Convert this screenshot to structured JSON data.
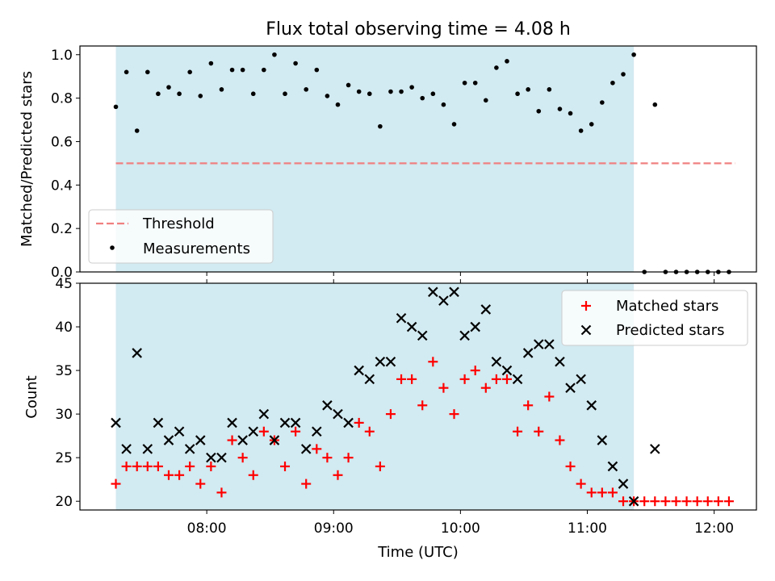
{
  "title": "Flux total observing time = 4.08 h",
  "colors": {
    "observing_band": "#add8e6",
    "threshold": "#f08080",
    "measurement": "#000000",
    "matched": "#ff0000",
    "predicted": "#000000"
  },
  "chart_data": [
    {
      "type": "scatter",
      "ylabel": "Matched/Predicted stars",
      "ylim": [
        0,
        1.04
      ],
      "yticks": [
        0.0,
        0.2,
        0.4,
        0.6,
        0.8,
        1.0
      ],
      "ytick_labels": [
        "0.0",
        "0.2",
        "0.4",
        "0.6",
        "0.8",
        "1.0"
      ],
      "observing_window": [
        "07:17",
        "11:22"
      ],
      "legend_position": "lower-left",
      "threshold": {
        "name": "Threshold",
        "style": "dashed",
        "value": 0.5,
        "x_range": [
          "07:17",
          "12:10"
        ]
      },
      "series": [
        {
          "name": "Measurements",
          "marker": "dot",
          "x": [
            "07:17",
            "07:22",
            "07:27",
            "07:32",
            "07:37",
            "07:42",
            "07:47",
            "07:52",
            "07:57",
            "08:02",
            "08:07",
            "08:12",
            "08:17",
            "08:22",
            "08:27",
            "08:32",
            "08:37",
            "08:42",
            "08:47",
            "08:52",
            "08:57",
            "09:02",
            "09:07",
            "09:12",
            "09:17",
            "09:22",
            "09:27",
            "09:32",
            "09:37",
            "09:42",
            "09:47",
            "09:52",
            "09:57",
            "10:02",
            "10:07",
            "10:12",
            "10:17",
            "10:22",
            "10:27",
            "10:32",
            "10:37",
            "10:42",
            "10:47",
            "10:52",
            "10:57",
            "11:02",
            "11:07",
            "11:12",
            "11:17",
            "11:22",
            "11:27",
            "11:32",
            "11:37",
            "11:42",
            "11:47",
            "11:52",
            "11:57",
            "12:02",
            "12:07"
          ],
          "y": [
            0.76,
            0.92,
            0.65,
            0.92,
            0.82,
            0.85,
            0.82,
            0.92,
            0.81,
            0.96,
            0.84,
            0.93,
            0.93,
            0.82,
            0.93,
            1.0,
            0.82,
            0.96,
            0.84,
            0.93,
            0.81,
            0.77,
            0.86,
            0.83,
            0.82,
            0.67,
            0.83,
            0.83,
            0.85,
            0.8,
            0.82,
            0.77,
            0.68,
            0.87,
            0.87,
            0.79,
            0.94,
            0.97,
            0.82,
            0.84,
            0.74,
            0.84,
            0.75,
            0.73,
            0.65,
            0.68,
            0.78,
            0.87,
            0.91,
            1.0,
            0.0,
            0.77,
            0.0,
            0.0,
            0.0,
            0.0,
            0.0,
            0.0,
            0.0
          ]
        }
      ]
    },
    {
      "type": "scatter",
      "xlabel": "Time (UTC)",
      "ylabel": "Count",
      "ylim": [
        19,
        45
      ],
      "yticks": [
        20,
        25,
        30,
        35,
        40,
        45
      ],
      "ytick_labels": [
        "20",
        "25",
        "30",
        "35",
        "40",
        "45"
      ],
      "x_range": [
        "07:00",
        "12:20"
      ],
      "xticks": [
        "08:00",
        "09:00",
        "10:00",
        "11:00",
        "12:00"
      ],
      "xtick_labels": [
        "08:00",
        "09:00",
        "10:00",
        "11:00",
        "12:00"
      ],
      "observing_window": [
        "07:17",
        "11:22"
      ],
      "legend_position": "upper-right",
      "series": [
        {
          "name": "Matched stars",
          "marker": "plus",
          "x": [
            "07:17",
            "07:22",
            "07:27",
            "07:32",
            "07:37",
            "07:42",
            "07:47",
            "07:52",
            "07:57",
            "08:02",
            "08:07",
            "08:12",
            "08:17",
            "08:22",
            "08:27",
            "08:32",
            "08:37",
            "08:42",
            "08:47",
            "08:52",
            "08:57",
            "09:02",
            "09:07",
            "09:12",
            "09:17",
            "09:22",
            "09:27",
            "09:32",
            "09:37",
            "09:42",
            "09:47",
            "09:52",
            "09:57",
            "10:02",
            "10:07",
            "10:12",
            "10:17",
            "10:22",
            "10:27",
            "10:32",
            "10:37",
            "10:42",
            "10:47",
            "10:52",
            "10:57",
            "11:02",
            "11:07",
            "11:12",
            "11:17",
            "11:22",
            "11:27",
            "11:32",
            "11:37",
            "11:42",
            "11:47",
            "11:52",
            "11:57",
            "12:02",
            "12:07"
          ],
          "y": [
            22,
            24,
            24,
            24,
            24,
            23,
            23,
            24,
            22,
            24,
            21,
            27,
            25,
            23,
            28,
            27,
            24,
            28,
            22,
            26,
            25,
            23,
            25,
            29,
            28,
            24,
            30,
            34,
            34,
            31,
            36,
            33,
            30,
            34,
            35,
            33,
            34,
            34,
            28,
            31,
            28,
            32,
            27,
            24,
            22,
            21,
            21,
            21,
            20,
            20,
            20,
            20,
            20,
            20,
            20,
            20,
            20,
            20,
            20
          ]
        },
        {
          "name": "Predicted stars",
          "marker": "x",
          "x": [
            "07:17",
            "07:22",
            "07:27",
            "07:32",
            "07:37",
            "07:42",
            "07:47",
            "07:52",
            "07:57",
            "08:02",
            "08:07",
            "08:12",
            "08:17",
            "08:22",
            "08:27",
            "08:32",
            "08:37",
            "08:42",
            "08:47",
            "08:52",
            "08:57",
            "09:02",
            "09:07",
            "09:12",
            "09:17",
            "09:22",
            "09:27",
            "09:32",
            "09:37",
            "09:42",
            "09:47",
            "09:52",
            "09:57",
            "10:02",
            "10:07",
            "10:12",
            "10:17",
            "10:22",
            "10:27",
            "10:32",
            "10:37",
            "10:42",
            "10:47",
            "10:52",
            "10:57",
            "11:02",
            "11:07",
            "11:12",
            "11:17",
            "11:22",
            "11:32"
          ],
          "y": [
            29,
            26,
            37,
            26,
            29,
            27,
            28,
            26,
            27,
            25,
            25,
            29,
            27,
            28,
            30,
            27,
            29,
            29,
            26,
            28,
            31,
            30,
            29,
            35,
            34,
            36,
            36,
            41,
            40,
            39,
            44,
            43,
            44,
            39,
            40,
            42,
            36,
            35,
            34,
            37,
            38,
            38,
            36,
            33,
            34,
            31,
            27,
            24,
            22,
            20,
            26
          ]
        }
      ]
    }
  ]
}
